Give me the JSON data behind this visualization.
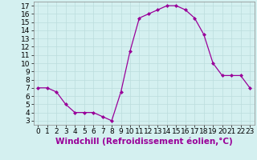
{
  "x": [
    0,
    1,
    2,
    3,
    4,
    5,
    6,
    7,
    8,
    9,
    10,
    11,
    12,
    13,
    14,
    15,
    16,
    17,
    18,
    19,
    20,
    21,
    22,
    23
  ],
  "y": [
    7.0,
    7.0,
    6.5,
    5.0,
    4.0,
    4.0,
    4.0,
    3.5,
    3.0,
    6.5,
    11.5,
    15.5,
    16.0,
    16.5,
    17.0,
    17.0,
    16.5,
    15.5,
    13.5,
    10.0,
    8.5,
    8.5,
    8.5,
    7.0
  ],
  "line_color": "#990099",
  "marker": "D",
  "marker_size": 2.0,
  "xlabel": "Windchill (Refroidissement éolien,°C)",
  "xlim": [
    -0.5,
    23.5
  ],
  "ylim": [
    2.5,
    17.5
  ],
  "yticks": [
    3,
    4,
    5,
    6,
    7,
    8,
    9,
    10,
    11,
    12,
    13,
    14,
    15,
    16,
    17
  ],
  "xticks": [
    0,
    1,
    2,
    3,
    4,
    5,
    6,
    7,
    8,
    9,
    10,
    11,
    12,
    13,
    14,
    15,
    16,
    17,
    18,
    19,
    20,
    21,
    22,
    23
  ],
  "grid_color": "#bbdddd",
  "bg_color": "#d4f0f0",
  "tick_fontsize": 6.5,
  "xlabel_fontsize": 7.5,
  "xlabel_color": "#990099"
}
